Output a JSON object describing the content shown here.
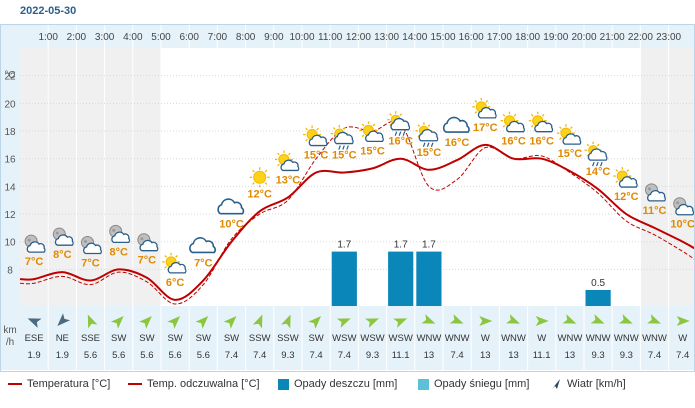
{
  "date": "2022-05-30",
  "colors": {
    "temperature": "#c00000",
    "feels_like": "#c00000",
    "rain": "#0a87b8",
    "snow": "#5bc0d8",
    "wind_arrow": "#8cc63f",
    "wind_arrow_first": "#4a6a80",
    "header_bg": "#e6f2fa",
    "night_bg": "#f0f0f0",
    "temp_label": "#e08a00"
  },
  "units": {
    "temp_axis": "°C",
    "wind_axis_1": "km",
    "wind_axis_2": "/h"
  },
  "legend": {
    "temperature": "Temperatura [°C]",
    "feels_like": "Temp. odczuwalna [°C]",
    "rain": "Opady deszczu [mm]",
    "snow": "Opady śniegu [mm]",
    "wind": "Wiatr [km/h]"
  },
  "chart_data": {
    "type": "line",
    "x": [
      "0:00",
      "1:00",
      "2:00",
      "3:00",
      "4:00",
      "5:00",
      "6:00",
      "7:00",
      "8:00",
      "9:00",
      "10:00",
      "11:00",
      "12:00",
      "13:00",
      "14:00",
      "15:00",
      "16:00",
      "17:00",
      "18:00",
      "19:00",
      "20:00",
      "21:00",
      "22:00",
      "23:00"
    ],
    "hour_labels": [
      "1:00",
      "2:00",
      "3:00",
      "4:00",
      "5:00",
      "6:00",
      "7:00",
      "8:00",
      "9:00",
      "10:00",
      "11:00",
      "12:00",
      "13:00",
      "14:00",
      "15:00",
      "16:00",
      "17:00",
      "18:00",
      "19:00",
      "20:00",
      "21:00",
      "22:00",
      "23:00"
    ],
    "yticks": [
      8,
      10,
      12,
      14,
      16,
      18,
      20,
      22
    ],
    "ylim": [
      5.5,
      24
    ],
    "series": [
      {
        "key": "temperature",
        "name": "Temperatura [°C]",
        "values": [
          7.3,
          7.8,
          7.2,
          8.0,
          7.4,
          5.8,
          7.2,
          10.0,
          12.2,
          13.2,
          15.0,
          15.0,
          15.3,
          16.0,
          15.2,
          15.9,
          17.0,
          16.0,
          16.0,
          15.1,
          13.8,
          12.0,
          11.0,
          10.0
        ]
      },
      {
        "key": "feels_like",
        "name": "Temp. odczuwalna [°C]",
        "values": [
          7.0,
          7.5,
          6.9,
          7.8,
          7.1,
          5.5,
          6.9,
          10.2,
          12.0,
          13.0,
          16.0,
          18.2,
          18.0,
          18.5,
          14.0,
          14.5,
          16.8,
          16.0,
          16.2,
          15.0,
          13.5,
          11.5,
          10.5,
          9.3
        ]
      }
    ],
    "temp_labels": [
      "7°C",
      "8°C",
      "7°C",
      "8°C",
      "7°C",
      "6°C",
      "7°C",
      "10°C",
      "12°C",
      "13°C",
      "15°C",
      "15°C",
      "15°C",
      "16°C",
      "15°C",
      "16°C",
      "17°C",
      "16°C",
      "16°C",
      "15°C",
      "14°C",
      "12°C",
      "11°C",
      "10°C"
    ],
    "weather_icons": [
      "partly-cloudy-night-icon",
      "partly-cloudy-night-icon",
      "partly-cloudy-night-icon",
      "partly-cloudy-night-icon",
      "partly-cloudy-night-icon",
      "partly-cloudy-day-icon",
      "cloud-icon",
      "cloud-icon",
      "sun-icon",
      "partly-cloudy-day-icon",
      "partly-cloudy-day-icon",
      "rain-cloud-icon",
      "partly-cloudy-day-icon",
      "rain-cloud-icon",
      "rain-cloud-icon",
      "cloud-icon",
      "partly-cloudy-day-icon",
      "partly-cloudy-day-icon",
      "partly-cloudy-day-icon",
      "partly-cloudy-day-icon",
      "rain-cloud-icon",
      "partly-cloudy-day-icon",
      "partly-cloudy-night-icon",
      "partly-cloudy-night-icon"
    ],
    "rain": [
      0,
      0,
      0,
      0,
      0,
      0,
      0,
      0,
      0,
      0,
      0,
      1.7,
      0,
      1.7,
      1.7,
      0,
      0,
      0,
      0,
      0,
      0.5,
      0,
      0,
      0
    ],
    "rain_labels": [
      "",
      "",
      "",
      "",
      "",
      "",
      "",
      "",
      "",
      "",
      "",
      "1.7",
      "",
      "1.7",
      "1.7",
      "",
      "",
      "",
      "",
      "",
      "0.5",
      "",
      "",
      ""
    ],
    "wind_dir": [
      "ESE",
      "NE",
      "SSE",
      "SW",
      "SW",
      "SW",
      "SW",
      "SW",
      "SSW",
      "SSW",
      "SW",
      "WSW",
      "WSW",
      "WSW",
      "WNW",
      "WNW",
      "W",
      "WNW",
      "W",
      "WNW",
      "WNW",
      "WNW",
      "WNW",
      "W"
    ],
    "wind_speed": [
      "1.9",
      "1.9",
      "5.6",
      "5.6",
      "5.6",
      "5.6",
      "5.6",
      "7.4",
      "7.4",
      "9.3",
      "7.4",
      "7.4",
      "9.3",
      "11.1",
      "13",
      "7.4",
      "13",
      "13",
      "11.1",
      "13",
      "9.3",
      "9.3",
      "7.4",
      "7.4"
    ],
    "night_hours": [
      0,
      1,
      2,
      3,
      4,
      22,
      23
    ]
  }
}
